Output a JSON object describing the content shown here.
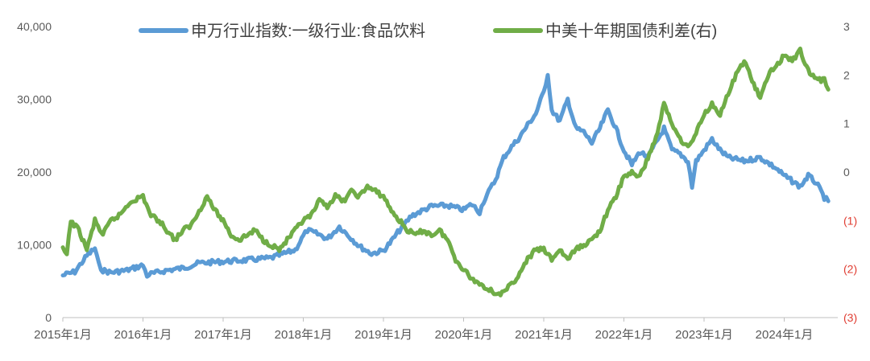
{
  "chart_data": {
    "type": "line",
    "title": "",
    "xlabel": "",
    "ylabel": "",
    "y2label": "",
    "grid": false,
    "legend_position": "top",
    "x_ticks": [
      "2015年1月",
      "2016年1月",
      "2017年1月",
      "2018年1月",
      "2019年1月",
      "2020年1月",
      "2021年1月",
      "2022年1月",
      "2023年1月",
      "2024年1月"
    ],
    "ylim_left": [
      0,
      40000
    ],
    "ylim_right": [
      -3,
      3
    ],
    "yticks_left": [
      "0",
      "10,000",
      "20,000",
      "30,000",
      "40,000"
    ],
    "yticks_right": [
      "(3)",
      "(2)",
      "(1)",
      "0",
      "1",
      "2",
      "3"
    ],
    "negative_tick_color": "#e03c31",
    "series": [
      {
        "name": "申万行业指数:一级行业:食品饮料",
        "axis": "left",
        "color": "#5b9bd5",
        "x": [
          2015.0,
          2015.15,
          2015.3,
          2015.4,
          2015.45,
          2015.5,
          2015.6,
          2015.8,
          2016.0,
          2016.05,
          2016.1,
          2016.3,
          2016.5,
          2016.7,
          2017.0,
          2017.3,
          2017.6,
          2017.9,
          2018.0,
          2018.05,
          2018.2,
          2018.3,
          2018.45,
          2018.7,
          2018.85,
          2019.0,
          2019.1,
          2019.2,
          2019.35,
          2019.6,
          2019.8,
          2020.0,
          2020.1,
          2020.2,
          2020.25,
          2020.4,
          2020.5,
          2020.6,
          2020.7,
          2020.8,
          2020.9,
          2021.0,
          2021.05,
          2021.1,
          2021.2,
          2021.3,
          2021.4,
          2021.5,
          2021.6,
          2021.7,
          2021.8,
          2021.9,
          2022.0,
          2022.1,
          2022.2,
          2022.3,
          2022.4,
          2022.5,
          2022.6,
          2022.7,
          2022.8,
          2022.85,
          2022.9,
          2023.0,
          2023.1,
          2023.2,
          2023.3,
          2023.5,
          2023.7,
          2023.9,
          2024.0,
          2024.2,
          2024.3,
          2024.4,
          2024.5,
          2024.55
        ],
        "values": [
          5800,
          6300,
          8500,
          9500,
          7200,
          6500,
          6200,
          6500,
          7200,
          5800,
          6000,
          6500,
          6800,
          7500,
          7700,
          7900,
          8200,
          9300,
          11200,
          12000,
          11400,
          10800,
          12500,
          9800,
          8800,
          9200,
          10500,
          12000,
          14000,
          15300,
          15400,
          14800,
          15600,
          14500,
          16000,
          19000,
          22000,
          23500,
          24800,
          26500,
          28000,
          31000,
          33500,
          28500,
          27000,
          30000,
          26000,
          25500,
          24000,
          26000,
          28500,
          26000,
          23000,
          21000,
          22800,
          22000,
          24000,
          26000,
          23000,
          22500,
          21500,
          18000,
          21500,
          23000,
          24500,
          23000,
          22000,
          21500,
          22000,
          20500,
          19500,
          18000,
          19500,
          18500,
          16500,
          16000
        ]
      },
      {
        "name": "中美十年期国债利差(右)",
        "axis": "right",
        "color": "#70ad47",
        "x": [
          2015.0,
          2015.05,
          2015.1,
          2015.2,
          2015.3,
          2015.4,
          2015.5,
          2015.6,
          2015.7,
          2015.85,
          2016.0,
          2016.1,
          2016.2,
          2016.3,
          2016.4,
          2016.5,
          2016.6,
          2016.7,
          2016.8,
          2016.9,
          2017.0,
          2017.1,
          2017.2,
          2017.3,
          2017.4,
          2017.5,
          2017.6,
          2017.7,
          2017.8,
          2017.9,
          2018.0,
          2018.1,
          2018.2,
          2018.3,
          2018.4,
          2018.5,
          2018.6,
          2018.7,
          2018.8,
          2018.9,
          2019.0,
          2019.1,
          2019.2,
          2019.3,
          2019.4,
          2019.5,
          2019.6,
          2019.7,
          2019.8,
          2019.9,
          2020.0,
          2020.1,
          2020.2,
          2020.3,
          2020.4,
          2020.5,
          2020.6,
          2020.7,
          2020.8,
          2020.9,
          2021.0,
          2021.1,
          2021.2,
          2021.3,
          2021.4,
          2021.5,
          2021.6,
          2021.7,
          2021.8,
          2021.9,
          2022.0,
          2022.1,
          2022.2,
          2022.3,
          2022.4,
          2022.5,
          2022.6,
          2022.7,
          2022.8,
          2022.9,
          2023.0,
          2023.1,
          2023.2,
          2023.3,
          2023.4,
          2023.5,
          2023.6,
          2023.7,
          2023.8,
          2023.9,
          2024.0,
          2024.1,
          2024.2,
          2024.3,
          2024.4,
          2024.5,
          2024.55
        ],
        "values": [
          -1.6,
          -1.7,
          -1.0,
          -1.2,
          -1.6,
          -1.0,
          -1.3,
          -1.0,
          -0.9,
          -0.6,
          -0.5,
          -0.9,
          -1.0,
          -1.2,
          -1.4,
          -1.2,
          -1.1,
          -0.8,
          -0.5,
          -0.8,
          -1.0,
          -1.3,
          -1.4,
          -1.3,
          -1.2,
          -1.4,
          -1.5,
          -1.6,
          -1.4,
          -1.2,
          -1.0,
          -0.9,
          -0.6,
          -0.7,
          -0.5,
          -0.6,
          -0.4,
          -0.5,
          -0.3,
          -0.4,
          -0.5,
          -0.8,
          -1.0,
          -1.2,
          -1.3,
          -1.2,
          -1.3,
          -1.2,
          -1.4,
          -1.8,
          -2.0,
          -2.2,
          -2.3,
          -2.4,
          -2.5,
          -2.5,
          -2.3,
          -2.1,
          -1.8,
          -1.6,
          -1.6,
          -1.8,
          -1.6,
          -1.8,
          -1.6,
          -1.5,
          -1.4,
          -1.2,
          -0.8,
          -0.5,
          -0.1,
          0.0,
          -0.1,
          0.3,
          0.7,
          1.4,
          1.0,
          0.7,
          0.5,
          0.8,
          1.2,
          1.4,
          1.2,
          1.6,
          2.0,
          2.3,
          1.9,
          1.5,
          2.0,
          2.2,
          2.4,
          2.3,
          2.5,
          2.1,
          1.9,
          1.9,
          1.7
        ]
      }
    ]
  }
}
